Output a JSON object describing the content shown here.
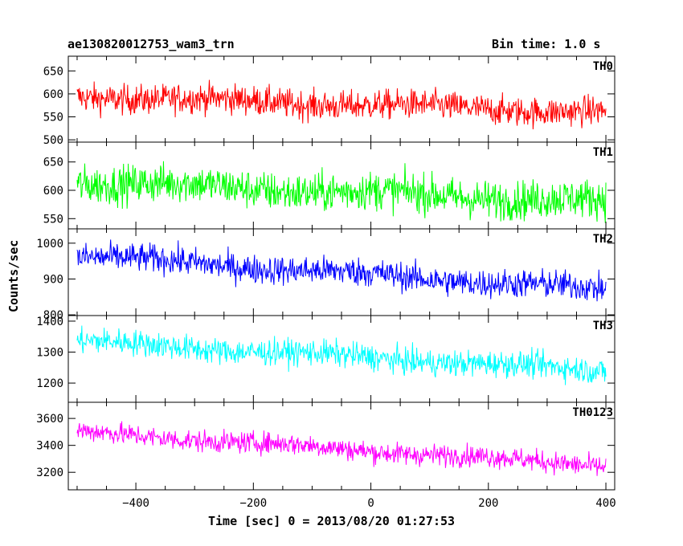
{
  "header": {
    "title": "ae130820012753_wam3_trn",
    "bin_time": "Bin time: 1.0 s"
  },
  "chart_data": {
    "type": "line",
    "title": "ae130820012753_wam3_trn",
    "xlabel": "Time [sec] 0 = 2013/08/20 01:27:53",
    "ylabel": "Counts/sec",
    "xlim": [
      -515,
      415
    ],
    "x_ticks": [
      -400,
      -200,
      0,
      200,
      400
    ],
    "x_tick_labels": [
      "−400",
      "−200",
      "0",
      "200",
      "400"
    ],
    "x_range": [
      -500,
      400
    ],
    "bin_time_s": 1.0,
    "panels": [
      {
        "name": "TH0",
        "color": "#ff0000",
        "ylim": [
          495,
          682
        ],
        "yticks": [
          500,
          550,
          600,
          650
        ],
        "start": 595,
        "end": 560,
        "noise": 32
      },
      {
        "name": "TH1",
        "color": "#00ff00",
        "ylim": [
          532,
          685
        ],
        "yticks": [
          550,
          600,
          650
        ],
        "start": 615,
        "end": 580,
        "noise": 34
      },
      {
        "name": "TH2",
        "color": "#0000ff",
        "ylim": [
          798,
          1040
        ],
        "yticks": [
          800,
          900,
          1000
        ],
        "start": 965,
        "end": 870,
        "noise": 40
      },
      {
        "name": "TH3",
        "color": "#00ffff",
        "ylim": [
          1138,
          1418
        ],
        "yticks": [
          1200,
          1300,
          1400
        ],
        "start": 1335,
        "end": 1240,
        "noise": 42
      },
      {
        "name": "TH0123",
        "color": "#ff00ff",
        "ylim": [
          3070,
          3720
        ],
        "yticks": [
          3200,
          3400,
          3600
        ],
        "start": 3500,
        "end": 3250,
        "noise": 80
      }
    ]
  }
}
